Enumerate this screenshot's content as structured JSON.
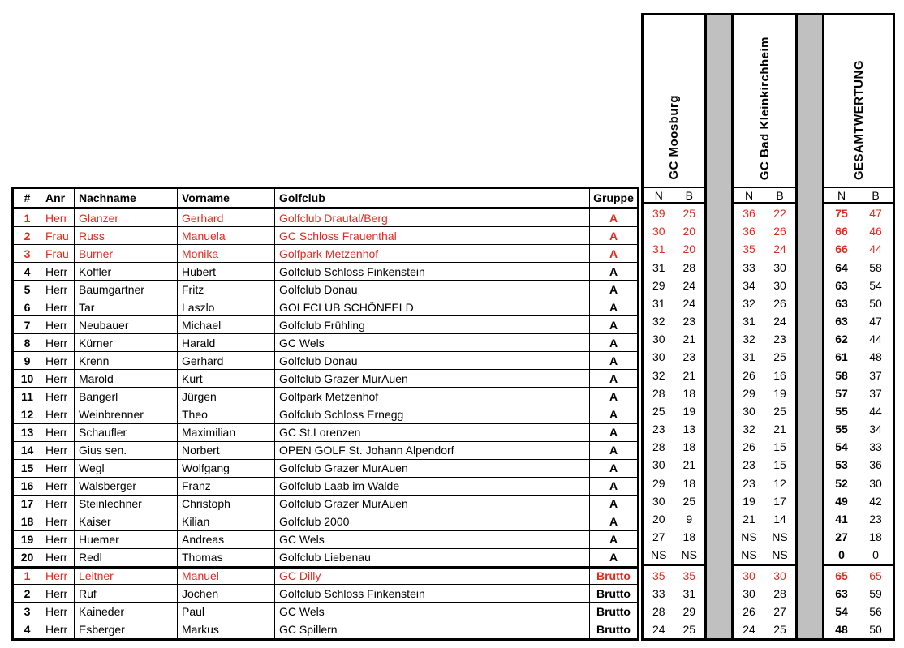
{
  "colors": {
    "highlight_red": "#e02b20",
    "spacer_gray": "#c0c0c0"
  },
  "table": {
    "columns": {
      "pos": "#",
      "anr": "Anr",
      "nachname": "Nachname",
      "vorname": "Vorname",
      "golfclub": "Golfclub",
      "gruppe": "Gruppe"
    },
    "score_header": {
      "n": "N",
      "b": "B"
    },
    "score_blocks": [
      "GC Moosburg",
      "GC Bad Kleinkirchheim",
      "GESAMTWERTUNG"
    ],
    "rows": [
      {
        "pos": "1",
        "anr": "Herr",
        "nachname": "Glanzer",
        "vorname": "Gerhard",
        "golfclub": "Golfclub Drautal/Berg",
        "gruppe": "A",
        "scores": [
          [
            "39",
            "25"
          ],
          [
            "36",
            "22"
          ],
          [
            "75",
            "47"
          ]
        ],
        "highlight": true,
        "section_start": false
      },
      {
        "pos": "2",
        "anr": "Frau",
        "nachname": "Russ",
        "vorname": "Manuela",
        "golfclub": "GC Schloss Frauenthal",
        "gruppe": "A",
        "scores": [
          [
            "30",
            "20"
          ],
          [
            "36",
            "26"
          ],
          [
            "66",
            "46"
          ]
        ],
        "highlight": true,
        "section_start": false
      },
      {
        "pos": "3",
        "anr": "Frau",
        "nachname": "Burner",
        "vorname": "Monika",
        "golfclub": "Golfpark Metzenhof",
        "gruppe": "A",
        "scores": [
          [
            "31",
            "20"
          ],
          [
            "35",
            "24"
          ],
          [
            "66",
            "44"
          ]
        ],
        "highlight": true,
        "section_start": false
      },
      {
        "pos": "4",
        "anr": "Herr",
        "nachname": "Koffler",
        "vorname": "Hubert",
        "golfclub": "Golfclub Schloss Finkenstein",
        "gruppe": "A",
        "scores": [
          [
            "31",
            "28"
          ],
          [
            "33",
            "30"
          ],
          [
            "64",
            "58"
          ]
        ],
        "highlight": false,
        "section_start": false
      },
      {
        "pos": "5",
        "anr": "Herr",
        "nachname": "Baumgartner",
        "vorname": "Fritz",
        "golfclub": "Golfclub Donau",
        "gruppe": "A",
        "scores": [
          [
            "29",
            "24"
          ],
          [
            "34",
            "30"
          ],
          [
            "63",
            "54"
          ]
        ],
        "highlight": false,
        "section_start": false
      },
      {
        "pos": "6",
        "anr": "Herr",
        "nachname": "Tar",
        "vorname": "Laszlo",
        "golfclub": "GOLFCLUB SCHÖNFELD",
        "gruppe": "A",
        "scores": [
          [
            "31",
            "24"
          ],
          [
            "32",
            "26"
          ],
          [
            "63",
            "50"
          ]
        ],
        "highlight": false,
        "section_start": false
      },
      {
        "pos": "7",
        "anr": "Herr",
        "nachname": "Neubauer",
        "vorname": "Michael",
        "golfclub": "Golfclub Frühling",
        "gruppe": "A",
        "scores": [
          [
            "32",
            "23"
          ],
          [
            "31",
            "24"
          ],
          [
            "63",
            "47"
          ]
        ],
        "highlight": false,
        "section_start": false
      },
      {
        "pos": "8",
        "anr": "Herr",
        "nachname": "Kürner",
        "vorname": "Harald",
        "golfclub": "GC Wels",
        "gruppe": "A",
        "scores": [
          [
            "30",
            "21"
          ],
          [
            "32",
            "23"
          ],
          [
            "62",
            "44"
          ]
        ],
        "highlight": false,
        "section_start": false
      },
      {
        "pos": "9",
        "anr": "Herr",
        "nachname": "Krenn",
        "vorname": "Gerhard",
        "golfclub": "Golfclub Donau",
        "gruppe": "A",
        "scores": [
          [
            "30",
            "23"
          ],
          [
            "31",
            "25"
          ],
          [
            "61",
            "48"
          ]
        ],
        "highlight": false,
        "section_start": false
      },
      {
        "pos": "10",
        "anr": "Herr",
        "nachname": "Marold",
        "vorname": "Kurt",
        "golfclub": "Golfclub Grazer MurAuen",
        "gruppe": "A",
        "scores": [
          [
            "32",
            "21"
          ],
          [
            "26",
            "16"
          ],
          [
            "58",
            "37"
          ]
        ],
        "highlight": false,
        "section_start": false
      },
      {
        "pos": "11",
        "anr": "Herr",
        "nachname": "Bangerl",
        "vorname": "Jürgen",
        "golfclub": "Golfpark Metzenhof",
        "gruppe": "A",
        "scores": [
          [
            "28",
            "18"
          ],
          [
            "29",
            "19"
          ],
          [
            "57",
            "37"
          ]
        ],
        "highlight": false,
        "section_start": false
      },
      {
        "pos": "12",
        "anr": "Herr",
        "nachname": "Weinbrenner",
        "vorname": "Theo",
        "golfclub": "Golfclub Schloss Ernegg",
        "gruppe": "A",
        "scores": [
          [
            "25",
            "19"
          ],
          [
            "30",
            "25"
          ],
          [
            "55",
            "44"
          ]
        ],
        "highlight": false,
        "section_start": false
      },
      {
        "pos": "13",
        "anr": "Herr",
        "nachname": "Schaufler",
        "vorname": "Maximilian",
        "golfclub": "GC St.Lorenzen",
        "gruppe": "A",
        "scores": [
          [
            "23",
            "13"
          ],
          [
            "32",
            "21"
          ],
          [
            "55",
            "34"
          ]
        ],
        "highlight": false,
        "section_start": false
      },
      {
        "pos": "14",
        "anr": "Herr",
        "nachname": "Gius sen.",
        "vorname": "Norbert",
        "golfclub": "OPEN GOLF St. Johann Alpendorf",
        "gruppe": "A",
        "scores": [
          [
            "28",
            "18"
          ],
          [
            "26",
            "15"
          ],
          [
            "54",
            "33"
          ]
        ],
        "highlight": false,
        "section_start": false
      },
      {
        "pos": "15",
        "anr": "Herr",
        "nachname": "Wegl",
        "vorname": "Wolfgang",
        "golfclub": "Golfclub Grazer MurAuen",
        "gruppe": "A",
        "scores": [
          [
            "30",
            "21"
          ],
          [
            "23",
            "15"
          ],
          [
            "53",
            "36"
          ]
        ],
        "highlight": false,
        "section_start": false
      },
      {
        "pos": "16",
        "anr": "Herr",
        "nachname": "Walsberger",
        "vorname": "Franz",
        "golfclub": "Golfclub Laab im Walde",
        "gruppe": "A",
        "scores": [
          [
            "29",
            "18"
          ],
          [
            "23",
            "12"
          ],
          [
            "52",
            "30"
          ]
        ],
        "highlight": false,
        "section_start": false
      },
      {
        "pos": "17",
        "anr": "Herr",
        "nachname": "Steinlechner",
        "vorname": "Christoph",
        "golfclub": "Golfclub Grazer MurAuen",
        "gruppe": "A",
        "scores": [
          [
            "30",
            "25"
          ],
          [
            "19",
            "17"
          ],
          [
            "49",
            "42"
          ]
        ],
        "highlight": false,
        "section_start": false
      },
      {
        "pos": "18",
        "anr": "Herr",
        "nachname": "Kaiser",
        "vorname": "Kilian",
        "golfclub": "Golfclub 2000",
        "gruppe": "A",
        "scores": [
          [
            "20",
            "9"
          ],
          [
            "21",
            "14"
          ],
          [
            "41",
            "23"
          ]
        ],
        "highlight": false,
        "section_start": false
      },
      {
        "pos": "19",
        "anr": "Herr",
        "nachname": "Huemer",
        "vorname": "Andreas",
        "golfclub": "GC Wels",
        "gruppe": "A",
        "scores": [
          [
            "27",
            "18"
          ],
          [
            "NS",
            "NS"
          ],
          [
            "27",
            "18"
          ]
        ],
        "highlight": false,
        "section_start": false
      },
      {
        "pos": "20",
        "anr": "Herr",
        "nachname": "Redl",
        "vorname": "Thomas",
        "golfclub": "Golfclub Liebenau",
        "gruppe": "A",
        "scores": [
          [
            "NS",
            "NS"
          ],
          [
            "NS",
            "NS"
          ],
          [
            "0",
            "0"
          ]
        ],
        "highlight": false,
        "section_start": false
      },
      {
        "pos": "1",
        "anr": "Herr",
        "nachname": "Leitner",
        "vorname": "Manuel",
        "golfclub": "GC Dilly",
        "gruppe": "Brutto",
        "scores": [
          [
            "35",
            "35"
          ],
          [
            "30",
            "30"
          ],
          [
            "65",
            "65"
          ]
        ],
        "highlight": true,
        "section_start": true
      },
      {
        "pos": "2",
        "anr": "Herr",
        "nachname": "Ruf",
        "vorname": "Jochen",
        "golfclub": "Golfclub Schloss Finkenstein",
        "gruppe": "Brutto",
        "scores": [
          [
            "33",
            "31"
          ],
          [
            "30",
            "28"
          ],
          [
            "63",
            "59"
          ]
        ],
        "highlight": false,
        "section_start": false
      },
      {
        "pos": "3",
        "anr": "Herr",
        "nachname": "Kaineder",
        "vorname": "Paul",
        "golfclub": "GC Wels",
        "gruppe": "Brutto",
        "scores": [
          [
            "28",
            "29"
          ],
          [
            "26",
            "27"
          ],
          [
            "54",
            "56"
          ]
        ],
        "highlight": false,
        "section_start": false
      },
      {
        "pos": "4",
        "anr": "Herr",
        "nachname": "Esberger",
        "vorname": "Markus",
        "golfclub": "GC Spillern",
        "gruppe": "Brutto",
        "scores": [
          [
            "24",
            "25"
          ],
          [
            "24",
            "25"
          ],
          [
            "48",
            "50"
          ]
        ],
        "highlight": false,
        "section_start": false
      }
    ]
  }
}
